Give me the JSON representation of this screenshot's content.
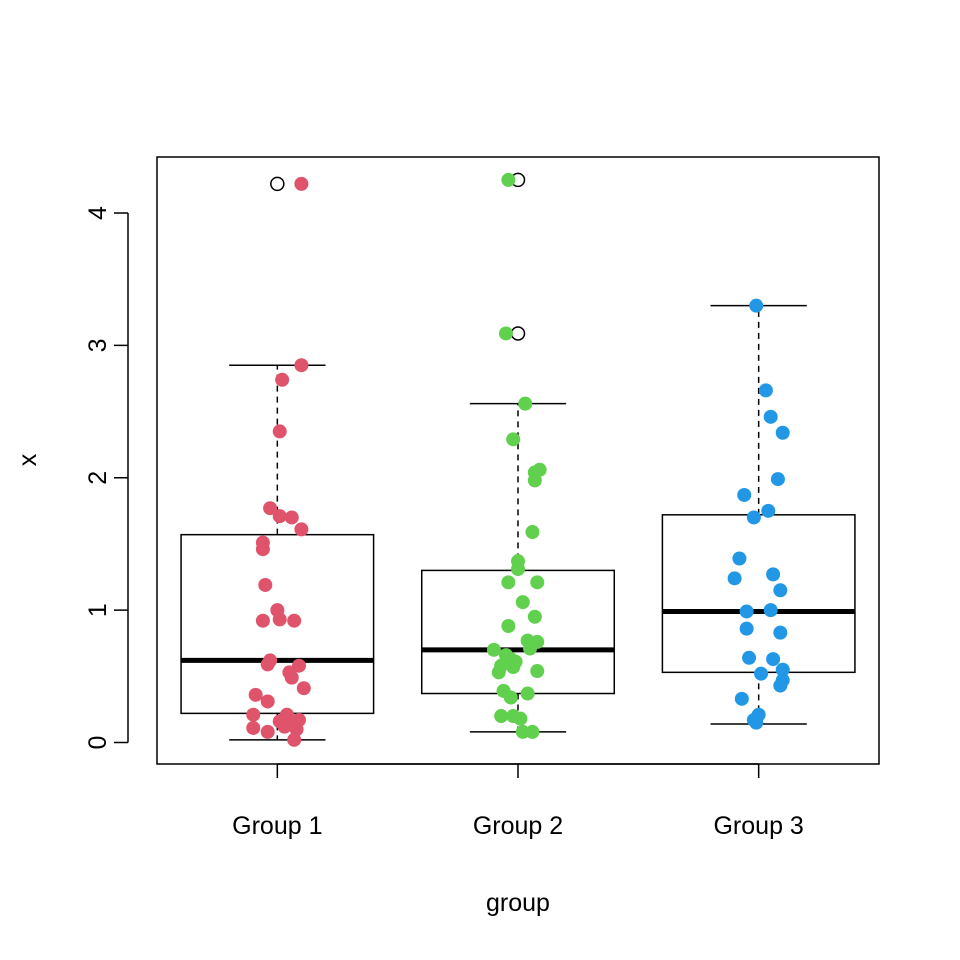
{
  "chart_data": {
    "type": "boxplot",
    "title": "",
    "xlabel": "group",
    "ylabel": "x",
    "ylim": [
      -0.15,
      4.45
    ],
    "yticks": [
      0,
      1,
      2,
      3,
      4
    ],
    "categories": [
      "Group 1",
      "Group 2",
      "Group 3"
    ],
    "grid": false,
    "legend": "none",
    "series": [
      {
        "name": "Group 1",
        "color": "#DF536B",
        "box": {
          "whisker_low": 0.02,
          "q1": 0.22,
          "median": 0.62,
          "q3": 1.57,
          "whisker_high": 2.85
        },
        "outliers": [
          4.22
        ],
        "points": [
          {
            "jitter": 0.1,
            "y": 4.22
          },
          {
            "jitter": 0.1,
            "y": 2.85
          },
          {
            "jitter": 0.02,
            "y": 2.74
          },
          {
            "jitter": 0.01,
            "y": 2.35
          },
          {
            "jitter": -0.03,
            "y": 1.77
          },
          {
            "jitter": 0.01,
            "y": 1.71
          },
          {
            "jitter": 0.06,
            "y": 1.7
          },
          {
            "jitter": 0.1,
            "y": 1.61
          },
          {
            "jitter": -0.06,
            "y": 1.51
          },
          {
            "jitter": -0.06,
            "y": 1.46
          },
          {
            "jitter": -0.05,
            "y": 1.19
          },
          {
            "jitter": 0.0,
            "y": 1.0
          },
          {
            "jitter": 0.01,
            "y": 0.93
          },
          {
            "jitter": -0.06,
            "y": 0.92
          },
          {
            "jitter": 0.07,
            "y": 0.92
          },
          {
            "jitter": -0.03,
            "y": 0.62
          },
          {
            "jitter": -0.04,
            "y": 0.59
          },
          {
            "jitter": 0.09,
            "y": 0.58
          },
          {
            "jitter": 0.05,
            "y": 0.53
          },
          {
            "jitter": 0.06,
            "y": 0.49
          },
          {
            "jitter": 0.11,
            "y": 0.41
          },
          {
            "jitter": -0.09,
            "y": 0.36
          },
          {
            "jitter": -0.04,
            "y": 0.31
          },
          {
            "jitter": 0.04,
            "y": 0.21
          },
          {
            "jitter": -0.1,
            "y": 0.21
          },
          {
            "jitter": 0.09,
            "y": 0.17
          },
          {
            "jitter": 0.01,
            "y": 0.16
          },
          {
            "jitter": 0.06,
            "y": 0.14
          },
          {
            "jitter": 0.03,
            "y": 0.12
          },
          {
            "jitter": -0.1,
            "y": 0.11
          },
          {
            "jitter": 0.08,
            "y": 0.1
          },
          {
            "jitter": -0.04,
            "y": 0.08
          },
          {
            "jitter": 0.07,
            "y": 0.02
          }
        ]
      },
      {
        "name": "Group 2",
        "color": "#61D04F",
        "box": {
          "whisker_low": 0.08,
          "q1": 0.37,
          "median": 0.7,
          "q3": 1.3,
          "whisker_high": 2.56
        },
        "outliers": [
          4.25,
          3.09
        ],
        "points": [
          {
            "jitter": -0.04,
            "y": 4.25
          },
          {
            "jitter": -0.05,
            "y": 3.09
          },
          {
            "jitter": 0.03,
            "y": 2.56
          },
          {
            "jitter": -0.02,
            "y": 2.29
          },
          {
            "jitter": 0.09,
            "y": 2.06
          },
          {
            "jitter": 0.07,
            "y": 2.04
          },
          {
            "jitter": 0.07,
            "y": 1.98
          },
          {
            "jitter": 0.06,
            "y": 1.59
          },
          {
            "jitter": 0.0,
            "y": 1.37
          },
          {
            "jitter": 0.0,
            "y": 1.31
          },
          {
            "jitter": -0.04,
            "y": 1.21
          },
          {
            "jitter": 0.08,
            "y": 1.21
          },
          {
            "jitter": 0.02,
            "y": 1.06
          },
          {
            "jitter": 0.07,
            "y": 0.95
          },
          {
            "jitter": -0.04,
            "y": 0.88
          },
          {
            "jitter": 0.04,
            "y": 0.77
          },
          {
            "jitter": 0.08,
            "y": 0.76
          },
          {
            "jitter": 0.05,
            "y": 0.71
          },
          {
            "jitter": -0.1,
            "y": 0.7
          },
          {
            "jitter": -0.05,
            "y": 0.66
          },
          {
            "jitter": -0.03,
            "y": 0.63
          },
          {
            "jitter": -0.01,
            "y": 0.61
          },
          {
            "jitter": -0.07,
            "y": 0.58
          },
          {
            "jitter": -0.02,
            "y": 0.57
          },
          {
            "jitter": 0.08,
            "y": 0.54
          },
          {
            "jitter": -0.08,
            "y": 0.53
          },
          {
            "jitter": -0.06,
            "y": 0.39
          },
          {
            "jitter": 0.04,
            "y": 0.37
          },
          {
            "jitter": -0.03,
            "y": 0.34
          },
          {
            "jitter": -0.07,
            "y": 0.2
          },
          {
            "jitter": -0.02,
            "y": 0.2
          },
          {
            "jitter": 0.01,
            "y": 0.18
          },
          {
            "jitter": 0.06,
            "y": 0.08
          },
          {
            "jitter": 0.02,
            "y": 0.08
          }
        ]
      },
      {
        "name": "Group 3",
        "color": "#2297E6",
        "box": {
          "whisker_low": 0.14,
          "q1": 0.53,
          "median": 0.99,
          "q3": 1.72,
          "whisker_high": 3.3
        },
        "outliers": [],
        "points": [
          {
            "jitter": -0.01,
            "y": 3.3
          },
          {
            "jitter": 0.03,
            "y": 2.66
          },
          {
            "jitter": 0.05,
            "y": 2.46
          },
          {
            "jitter": 0.1,
            "y": 2.34
          },
          {
            "jitter": 0.08,
            "y": 1.99
          },
          {
            "jitter": -0.06,
            "y": 1.87
          },
          {
            "jitter": 0.04,
            "y": 1.75
          },
          {
            "jitter": -0.02,
            "y": 1.7
          },
          {
            "jitter": -0.08,
            "y": 1.39
          },
          {
            "jitter": 0.06,
            "y": 1.27
          },
          {
            "jitter": -0.1,
            "y": 1.24
          },
          {
            "jitter": 0.09,
            "y": 1.15
          },
          {
            "jitter": -0.05,
            "y": 0.99
          },
          {
            "jitter": 0.05,
            "y": 1.0
          },
          {
            "jitter": -0.05,
            "y": 0.86
          },
          {
            "jitter": 0.09,
            "y": 0.83
          },
          {
            "jitter": -0.04,
            "y": 0.64
          },
          {
            "jitter": 0.06,
            "y": 0.63
          },
          {
            "jitter": 0.1,
            "y": 0.55
          },
          {
            "jitter": 0.01,
            "y": 0.52
          },
          {
            "jitter": 0.1,
            "y": 0.47
          },
          {
            "jitter": 0.09,
            "y": 0.43
          },
          {
            "jitter": -0.07,
            "y": 0.33
          },
          {
            "jitter": 0.0,
            "y": 0.21
          },
          {
            "jitter": -0.02,
            "y": 0.17
          },
          {
            "jitter": -0.01,
            "y": 0.15
          }
        ]
      }
    ]
  }
}
